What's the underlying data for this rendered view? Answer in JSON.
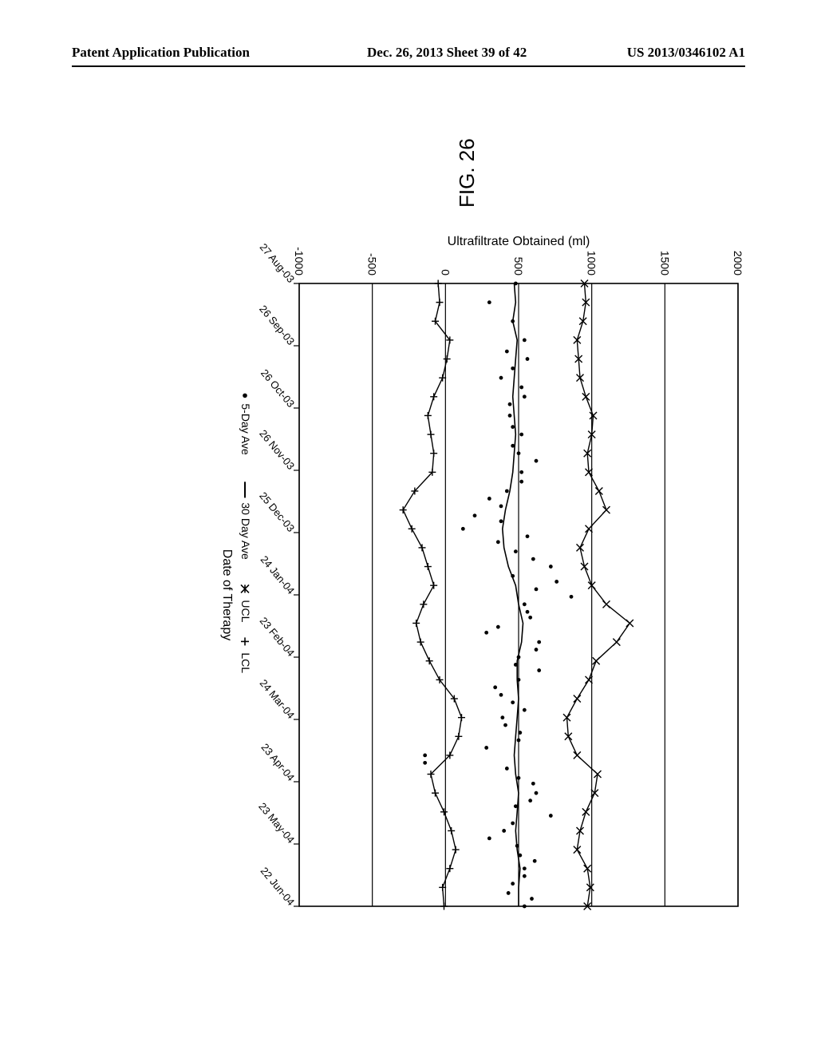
{
  "header": {
    "left": "Patent Application Publication",
    "center": "Dec. 26, 2013  Sheet 39 of 42",
    "right": "US 2013/0346102 A1"
  },
  "figure": {
    "title": "FIG. 26",
    "type": "scatter-line-control-chart",
    "xlabel": "Date of Therapy",
    "ylabel": "Ultrafiltrate Obtained (ml)",
    "ylim": [
      -1000,
      2000
    ],
    "yticks": [
      -1000,
      -500,
      0,
      500,
      1000,
      1500,
      2000
    ],
    "xticks": [
      "27 Aug-03",
      "26 Sep-03",
      "26 Oct-03",
      "26 Nov-03",
      "25 Dec-03",
      "24 Jan-04",
      "23 Feb-04",
      "24 Mar-04",
      "23 Apr-04",
      "23 May-04",
      "22 Jun-04"
    ],
    "legend": [
      {
        "marker": "dot",
        "label": "5-Day Ave"
      },
      {
        "marker": "line",
        "label": "30 Day Ave"
      },
      {
        "marker": "star",
        "label": "UCL"
      },
      {
        "marker": "plus",
        "label": "LCL"
      }
    ],
    "background_color": "#ffffff",
    "grid_color": "#000000",
    "line_color": "#000000",
    "marker_color": "#000000",
    "axis_fontsize": 14,
    "label_fontsize": 16,
    "title_fontsize": 26,
    "ucl": [
      950,
      960,
      940,
      900,
      910,
      920,
      960,
      1010,
      1000,
      970,
      980,
      1050,
      1100,
      980,
      920,
      950,
      1000,
      1100,
      1260,
      1170,
      1030,
      980,
      900,
      830,
      840,
      900,
      1040,
      1020,
      960,
      920,
      900,
      970,
      990,
      970
    ],
    "lcl": [
      -50,
      -40,
      -70,
      30,
      10,
      -20,
      -80,
      -120,
      -100,
      -80,
      -90,
      -210,
      -290,
      -230,
      -160,
      -120,
      -80,
      -150,
      -200,
      -170,
      -110,
      -40,
      60,
      110,
      90,
      30,
      -100,
      -70,
      -10,
      40,
      70,
      30,
      -20,
      -10
    ],
    "avg30": [
      470,
      480,
      460,
      490,
      480,
      470,
      460,
      470,
      480,
      470,
      460,
      440,
      410,
      390,
      400,
      430,
      480,
      500,
      530,
      520,
      490,
      490,
      500,
      490,
      480,
      470,
      480,
      500,
      490,
      480,
      490,
      510,
      500,
      500
    ],
    "five_day_dots": [
      [
        0,
        480
      ],
      [
        1,
        300
      ],
      [
        2,
        460
      ],
      [
        3,
        540
      ],
      [
        3.6,
        420
      ],
      [
        4,
        560
      ],
      [
        4.5,
        460
      ],
      [
        5,
        380
      ],
      [
        5.5,
        520
      ],
      [
        6,
        540
      ],
      [
        6.4,
        440
      ],
      [
        7,
        440
      ],
      [
        7.6,
        460
      ],
      [
        8,
        520
      ],
      [
        8.6,
        460
      ],
      [
        9,
        500
      ],
      [
        9.4,
        620
      ],
      [
        10,
        520
      ],
      [
        10.5,
        520
      ],
      [
        11,
        420
      ],
      [
        11.4,
        300
      ],
      [
        11.8,
        380
      ],
      [
        12.3,
        200
      ],
      [
        12.6,
        380
      ],
      [
        13,
        120
      ],
      [
        13.4,
        560
      ],
      [
        13.7,
        360
      ],
      [
        14.2,
        480
      ],
      [
        14.6,
        600
      ],
      [
        15,
        720
      ],
      [
        15.5,
        460
      ],
      [
        15.8,
        760
      ],
      [
        16.2,
        620
      ],
      [
        16.6,
        860
      ],
      [
        17,
        540
      ],
      [
        17.4,
        560
      ],
      [
        17.7,
        580
      ],
      [
        18.2,
        360
      ],
      [
        18.5,
        280
      ],
      [
        19,
        640
      ],
      [
        19.4,
        620
      ],
      [
        19.8,
        500
      ],
      [
        20.2,
        480
      ],
      [
        20.5,
        640
      ],
      [
        21,
        500
      ],
      [
        21.4,
        340
      ],
      [
        21.8,
        380
      ],
      [
        22.2,
        460
      ],
      [
        22.6,
        540
      ],
      [
        23,
        390
      ],
      [
        23.4,
        410
      ],
      [
        23.8,
        510
      ],
      [
        24.2,
        500
      ],
      [
        24.6,
        280
      ],
      [
        25,
        -140
      ],
      [
        25.4,
        -140
      ],
      [
        25.7,
        420
      ],
      [
        26.2,
        500
      ],
      [
        26.5,
        600
      ],
      [
        27,
        620
      ],
      [
        27.4,
        580
      ],
      [
        27.7,
        480
      ],
      [
        28.2,
        720
      ],
      [
        28.6,
        460
      ],
      [
        29,
        400
      ],
      [
        29.4,
        300
      ],
      [
        29.8,
        490
      ],
      [
        30.3,
        510
      ],
      [
        30.6,
        610
      ],
      [
        31,
        540
      ],
      [
        31.4,
        540
      ],
      [
        31.8,
        460
      ],
      [
        32.3,
        430
      ],
      [
        32.6,
        590
      ],
      [
        33,
        540
      ]
    ]
  }
}
